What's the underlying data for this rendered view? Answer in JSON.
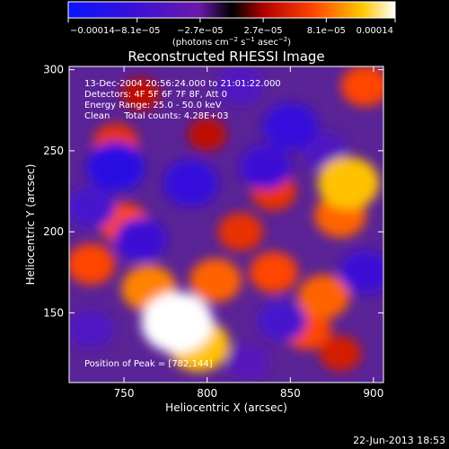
{
  "chart_data": {
    "type": "heatmap",
    "title": "Reconstructed RHESSI Image",
    "xlabel": "Heliocentric X (arcsec)",
    "ylabel": "Heliocentric Y (arcsec)",
    "xlim": [
      717,
      906
    ],
    "ylim": [
      107,
      302
    ],
    "xticks": [
      750,
      800,
      850,
      900
    ],
    "yticks": [
      150,
      200,
      250,
      300
    ],
    "colorbar": {
      "ticks": [
        "−0.00014",
        "−8.1e−05",
        "−2.7e−05",
        "2.7e−05",
        "8.1e−05",
        "0.00014"
      ],
      "units_prefix": "(photons cm",
      "units_exp1": "−2",
      "units_mid": " s",
      "units_exp2": "−1",
      "units_mid2": " asec",
      "units_exp3": "−2",
      "units_suffix": ")",
      "range": [
        -0.00014,
        0.00014
      ]
    },
    "annotations": [
      "13-Dec-2004 20:56:24.000 to 21:01:22.000",
      "Detectors: 4F 5F 6F 7F 8F, Att 0",
      "Energy Range: 25.0 - 50.0 keV",
      "Clean     Total counts: 4.28E+03"
    ],
    "peak_text": "Position of Peak = [782,144]",
    "peak": {
      "x": 782,
      "y": 144
    },
    "hotspots": [
      {
        "x": 782,
        "y": 144,
        "value": 0.00014
      },
      {
        "x": 765,
        "y": 165,
        "value": 9e-05
      },
      {
        "x": 795,
        "y": 130,
        "value": 0.00011
      },
      {
        "x": 805,
        "y": 170,
        "value": 8e-05
      },
      {
        "x": 820,
        "y": 200,
        "value": 6e-05
      },
      {
        "x": 840,
        "y": 225,
        "value": 6e-05
      },
      {
        "x": 885,
        "y": 230,
        "value": 0.00011
      },
      {
        "x": 880,
        "y": 210,
        "value": 8e-05
      },
      {
        "x": 870,
        "y": 160,
        "value": 8e-05
      },
      {
        "x": 860,
        "y": 140,
        "value": 7e-05
      },
      {
        "x": 730,
        "y": 180,
        "value": 7e-05
      },
      {
        "x": 745,
        "y": 255,
        "value": 6e-05
      },
      {
        "x": 750,
        "y": 205,
        "value": 7e-05
      },
      {
        "x": 895,
        "y": 290,
        "value": 7e-05
      },
      {
        "x": 760,
        "y": 285,
        "value": 4e-05
      },
      {
        "x": 800,
        "y": 260,
        "value": 4e-05
      },
      {
        "x": 840,
        "y": 175,
        "value": 7e-05
      },
      {
        "x": 880,
        "y": 125,
        "value": 5e-05
      },
      {
        "x": 790,
        "y": 230,
        "value": -9e-05
      },
      {
        "x": 745,
        "y": 240,
        "value": -0.0001
      },
      {
        "x": 760,
        "y": 195,
        "value": -8e-05
      },
      {
        "x": 850,
        "y": 265,
        "value": -9e-05
      },
      {
        "x": 835,
        "y": 240,
        "value": -8e-05
      },
      {
        "x": 845,
        "y": 145,
        "value": -7e-05
      },
      {
        "x": 895,
        "y": 175,
        "value": -8e-05
      },
      {
        "x": 820,
        "y": 290,
        "value": -6e-05
      },
      {
        "x": 730,
        "y": 215,
        "value": -7e-05
      },
      {
        "x": 870,
        "y": 250,
        "value": -6e-05
      },
      {
        "x": 825,
        "y": 120,
        "value": -5e-05
      },
      {
        "x": 730,
        "y": 140,
        "value": -6e-05
      }
    ]
  },
  "footer": {
    "date": "22-Jun-2013 18:53"
  }
}
